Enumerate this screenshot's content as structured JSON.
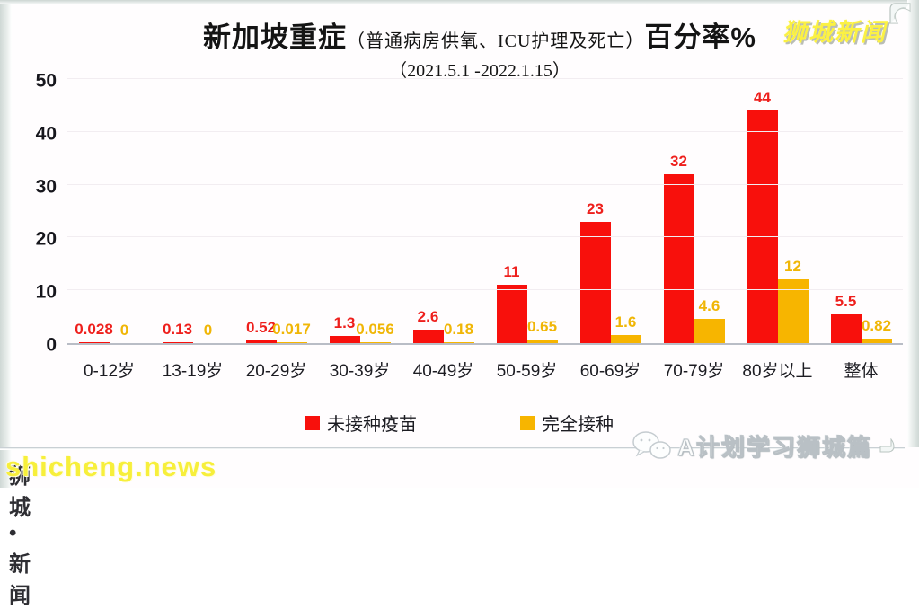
{
  "title": {
    "main": "新加坡重症",
    "paren": "（普通病房供氧、ICU护理及死亡）",
    "suffix": "百分率%",
    "subtitle": "（2021.5.1 -2022.1.15）"
  },
  "watermarks": {
    "top_right": "狮城新闻",
    "bottom_right": "A计划学习狮城篇",
    "bottom_left_front": "shicheng.news",
    "bottom_left_behind": "狮城•新闻"
  },
  "colors": {
    "unvaccinated_red": "#f8100c",
    "vaccinated_yellow": "#f7b500",
    "red_label": "#ee1f1c",
    "yellow_label": "#f0b606",
    "grid": "#f2edf1",
    "axis": "#b9bdc6",
    "watermark_yellow": "#f7ef3b"
  },
  "chart_data": {
    "type": "bar",
    "title": "新加坡重症（普通病房供氧、ICU护理及死亡）百分率%",
    "subtitle": "（2021.5.1 -2022.1.15）",
    "categories": [
      "0-12岁",
      "13-19岁",
      "20-29岁",
      "30-39岁",
      "40-49岁",
      "50-59岁",
      "60-69岁",
      "70-79岁",
      "80岁以上",
      "整体"
    ],
    "series": [
      {
        "name": "未接种疫苗",
        "color": "#f8100c",
        "label_color": "#ee1f1c",
        "values": [
          0.028,
          0.13,
          0.52,
          1.3,
          2.6,
          11,
          23,
          32,
          44,
          5.5
        ],
        "labels": [
          "0.028",
          "0.13",
          "0.52",
          "1.3",
          "2.6",
          "11",
          "23",
          "32",
          "44",
          "5.5"
        ]
      },
      {
        "name": "完全接种",
        "color": "#f7b500",
        "label_color": "#f0b606",
        "values": [
          0,
          0,
          0.017,
          0.056,
          0.18,
          0.65,
          1.6,
          4.6,
          12,
          0.82
        ],
        "labels": [
          "0",
          "0",
          "0.017",
          "0.056",
          "0.18",
          "0.65",
          "1.6",
          "4.6",
          "12",
          "0.82"
        ]
      }
    ],
    "xlabel": "",
    "ylabel": "",
    "ylim": [
      0,
      50
    ],
    "yticks": [
      0,
      10,
      20,
      30,
      40,
      50
    ],
    "grid": true,
    "legend_position": "bottom"
  }
}
